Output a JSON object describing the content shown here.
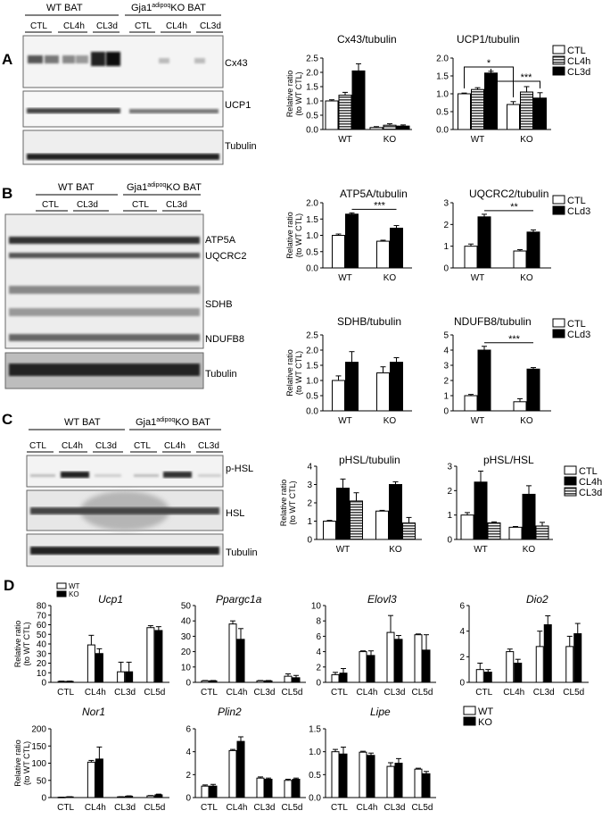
{
  "panels": {
    "A": {
      "letter": "A",
      "blot": {
        "groups": [
          "WT BAT",
          "Gja1",
          "adipoq",
          "KO BAT"
        ],
        "conditions": [
          "CTL",
          "CL4h",
          "CL3d",
          "CTL",
          "CL4h",
          "CL3d"
        ],
        "bands": [
          "Cx43",
          "UCP1",
          "Tubulin"
        ]
      }
    },
    "B": {
      "letter": "B",
      "blot": {
        "groups": [
          "WT BAT",
          "Gja1",
          "adipoq",
          "KO BAT"
        ],
        "conditions": [
          "CTL",
          "CL3d",
          "CTL",
          "CL3d"
        ],
        "bands": [
          "ATP5A",
          "UQCRC2",
          "SDHB",
          "NDUFB8",
          "Tubulin"
        ]
      }
    },
    "C": {
      "letter": "C",
      "blot": {
        "groups": [
          "WT BAT",
          "Gja1",
          "adipoq",
          "KO BAT"
        ],
        "conditions": [
          "CTL",
          "CL4h",
          "CL3d",
          "CTL",
          "CL4h",
          "CL3d"
        ],
        "bands": [
          "p-HSL",
          "HSL",
          "Tubulin"
        ]
      }
    },
    "D": {
      "letter": "D"
    }
  },
  "colors": {
    "white_fill": "#ffffff",
    "black_fill": "#000000",
    "striped": "#555555"
  },
  "chart_data": [
    {
      "id": "A1",
      "type": "bar",
      "title": "Cx43/tubulin",
      "ylabel": "Relative ratio\n(to WT CTL)",
      "categories": [
        "WT",
        "KO"
      ],
      "ylim": [
        0,
        2.5
      ],
      "ticks": [
        "0.0",
        "0.5",
        "1.0",
        "1.5",
        "2.0",
        "2.5"
      ],
      "series": [
        {
          "name": "CTL",
          "fill": "white",
          "values": [
            1.0,
            0.07
          ],
          "err": [
            0.04,
            0.03
          ]
        },
        {
          "name": "CL4h",
          "fill": "stripe",
          "values": [
            1.2,
            0.15
          ],
          "err": [
            0.1,
            0.05
          ]
        },
        {
          "name": "CL3d",
          "fill": "black",
          "values": [
            2.05,
            0.12
          ],
          "err": [
            0.25,
            0.04
          ]
        }
      ]
    },
    {
      "id": "A2",
      "type": "bar",
      "title": "UCP1/tubulin",
      "ylabel": "",
      "categories": [
        "WT",
        "KO"
      ],
      "ylim": [
        0,
        2.0
      ],
      "ticks": [
        "0.0",
        "0.5",
        "1.0",
        "1.5",
        "2.0"
      ],
      "series": [
        {
          "name": "CTL",
          "fill": "white",
          "values": [
            1.0,
            0.7
          ],
          "err": [
            0.02,
            0.08
          ]
        },
        {
          "name": "CL4h",
          "fill": "stripe",
          "values": [
            1.12,
            1.05
          ],
          "err": [
            0.05,
            0.15
          ]
        },
        {
          "name": "CL3d",
          "fill": "black",
          "values": [
            1.58,
            0.88
          ],
          "err": [
            0.05,
            0.15
          ]
        }
      ],
      "legend": [
        "CTL",
        "CL4h",
        "CL3d"
      ],
      "sig": [
        "*",
        "***"
      ]
    },
    {
      "id": "B1",
      "type": "bar",
      "title": "ATP5A/tubulin",
      "ylabel": "Relative ratio\n(to WT CTL)",
      "categories": [
        "WT",
        "KO"
      ],
      "ylim": [
        0,
        2.0
      ],
      "ticks": [
        "0.0",
        "0.5",
        "1.0",
        "1.5",
        "2.0"
      ],
      "series": [
        {
          "name": "CTL",
          "fill": "white",
          "values": [
            1.0,
            0.82
          ],
          "err": [
            0.04,
            0.03
          ]
        },
        {
          "name": "CLd3",
          "fill": "black",
          "values": [
            1.65,
            1.22
          ],
          "err": [
            0.04,
            0.08
          ]
        }
      ],
      "sig": [
        "***"
      ]
    },
    {
      "id": "B2",
      "type": "bar",
      "title": "UQCRC2/tubulin",
      "ylabel": "",
      "categories": [
        "WT",
        "KO"
      ],
      "ylim": [
        0,
        3
      ],
      "ticks": [
        "0",
        "1",
        "2",
        "3"
      ],
      "series": [
        {
          "name": "CTL",
          "fill": "white",
          "values": [
            1.0,
            0.78
          ],
          "err": [
            0.1,
            0.06
          ]
        },
        {
          "name": "CLd3",
          "fill": "black",
          "values": [
            2.35,
            1.65
          ],
          "err": [
            0.12,
            0.1
          ]
        }
      ],
      "legend": [
        "CTL",
        "CLd3"
      ],
      "sig": [
        "**"
      ]
    },
    {
      "id": "B3",
      "type": "bar",
      "title": "SDHB/tubulin",
      "ylabel": "Relative ratio\n(to WT CTL)",
      "categories": [
        "WT",
        "KO"
      ],
      "ylim": [
        0,
        2.5
      ],
      "ticks": [
        "0.0",
        "0.5",
        "1.0",
        "1.5",
        "2.0",
        "2.5"
      ],
      "series": [
        {
          "name": "CTL",
          "fill": "white",
          "values": [
            1.0,
            1.25
          ],
          "err": [
            0.15,
            0.2
          ]
        },
        {
          "name": "CLd3",
          "fill": "black",
          "values": [
            1.6,
            1.6
          ],
          "err": [
            0.35,
            0.15
          ]
        }
      ]
    },
    {
      "id": "B4",
      "type": "bar",
      "title": "NDUFB8/tubulin",
      "ylabel": "",
      "categories": [
        "WT",
        "KO"
      ],
      "ylim": [
        0,
        5
      ],
      "ticks": [
        "0",
        "1",
        "2",
        "3",
        "4",
        "5"
      ],
      "series": [
        {
          "name": "CTL",
          "fill": "white",
          "values": [
            1.0,
            0.6
          ],
          "err": [
            0.08,
            0.2
          ]
        },
        {
          "name": "CLd3",
          "fill": "black",
          "values": [
            4.0,
            2.75
          ],
          "err": [
            0.25,
            0.1
          ]
        }
      ],
      "legend": [
        "CTL",
        "CLd3"
      ],
      "sig": [
        "***"
      ]
    },
    {
      "id": "C1",
      "type": "bar",
      "title": "pHSL/tubulin",
      "ylabel": "Relative ratio\n(to WT CTL)",
      "categories": [
        "WT",
        "KO"
      ],
      "ylim": [
        0,
        4
      ],
      "ticks": [
        "0",
        "1",
        "2",
        "3",
        "4"
      ],
      "series": [
        {
          "name": "CTL",
          "fill": "white",
          "values": [
            1.0,
            1.55
          ],
          "err": [
            0.04,
            0.04
          ]
        },
        {
          "name": "CL4h",
          "fill": "black",
          "values": [
            2.8,
            3.0
          ],
          "err": [
            0.5,
            0.15
          ]
        },
        {
          "name": "CL3d",
          "fill": "stripe",
          "values": [
            2.1,
            0.9
          ],
          "err": [
            0.45,
            0.3
          ]
        }
      ]
    },
    {
      "id": "C2",
      "type": "bar",
      "title": "pHSL/HSL",
      "ylabel": "",
      "categories": [
        "WT",
        "KO"
      ],
      "ylim": [
        0,
        3
      ],
      "ticks": [
        "0",
        "1",
        "2",
        "3"
      ],
      "series": [
        {
          "name": "CTL",
          "fill": "white",
          "values": [
            1.0,
            0.5
          ],
          "err": [
            0.1,
            0.03
          ]
        },
        {
          "name": "CL4h",
          "fill": "black",
          "values": [
            2.35,
            1.85
          ],
          "err": [
            0.45,
            0.35
          ]
        },
        {
          "name": "CL3d",
          "fill": "stripe",
          "values": [
            0.68,
            0.55
          ],
          "err": [
            0.04,
            0.15
          ]
        }
      ],
      "legend": [
        "CTL",
        "CL4h",
        "CL3d"
      ]
    },
    {
      "id": "D1",
      "type": "bar",
      "title": "Ucp1",
      "italic": true,
      "ylabel": "Relative ratio\n(to WT CTL)",
      "categories": [
        "CTL",
        "CL4h",
        "CL3d",
        "CL5d"
      ],
      "ylim": [
        0,
        80
      ],
      "ticks": [
        "0",
        "10",
        "20",
        "30",
        "40",
        "50",
        "60",
        "70",
        "80"
      ],
      "series": [
        {
          "name": "WT",
          "fill": "white",
          "values": [
            1,
            39,
            11,
            57
          ],
          "err": [
            0.3,
            10,
            10,
            2
          ]
        },
        {
          "name": "KO",
          "fill": "black",
          "values": [
            1,
            30,
            11,
            54
          ],
          "err": [
            0.3,
            5,
            10,
            4
          ]
        }
      ],
      "legend": [
        "WT",
        "KO"
      ],
      "legend_small": true
    },
    {
      "id": "D2",
      "type": "bar",
      "title": "Ppargc1a",
      "italic": true,
      "ylabel": "",
      "categories": [
        "CTL",
        "CL4h",
        "CL3d",
        "CL5d"
      ],
      "ylim": [
        0,
        50
      ],
      "ticks": [
        "0",
        "10",
        "20",
        "30",
        "40",
        "50"
      ],
      "series": [
        {
          "name": "WT",
          "fill": "white",
          "values": [
            1,
            38,
            1,
            4
          ],
          "err": [
            0.2,
            2,
            0.2,
            1.5
          ]
        },
        {
          "name": "KO",
          "fill": "black",
          "values": [
            1,
            28,
            1,
            3
          ],
          "err": [
            0.2,
            7,
            0.2,
            1.5
          ]
        }
      ]
    },
    {
      "id": "D3",
      "type": "bar",
      "title": "Elovl3",
      "italic": true,
      "ylabel": "",
      "categories": [
        "CTL",
        "CL4h",
        "CL3d",
        "CL5d"
      ],
      "ylim": [
        0,
        10
      ],
      "ticks": [
        "0",
        "2",
        "4",
        "6",
        "8",
        "10"
      ],
      "series": [
        {
          "name": "WT",
          "fill": "white",
          "values": [
            1,
            4,
            6.5,
            6.2
          ],
          "err": [
            0.3,
            0.1,
            2.2,
            0.1
          ]
        },
        {
          "name": "KO",
          "fill": "black",
          "values": [
            1.2,
            3.5,
            5.6,
            4.2
          ],
          "err": [
            0.6,
            0.6,
            0.5,
            2
          ]
        }
      ]
    },
    {
      "id": "D4",
      "type": "bar",
      "title": "Dio2",
      "italic": true,
      "ylabel": "",
      "categories": [
        "CTL",
        "CL4h",
        "CL3d",
        "CL5d"
      ],
      "ylim": [
        0,
        6
      ],
      "ticks": [
        "0",
        "2",
        "4",
        "6"
      ],
      "series": [
        {
          "name": "WT",
          "fill": "white",
          "values": [
            1,
            2.4,
            2.8,
            2.8
          ],
          "err": [
            0.5,
            0.2,
            1.2,
            0.8
          ]
        },
        {
          "name": "KO",
          "fill": "black",
          "values": [
            0.8,
            1.5,
            4.5,
            3.8
          ],
          "err": [
            0.2,
            0.3,
            0.7,
            0.8
          ]
        }
      ]
    },
    {
      "id": "D5",
      "type": "bar",
      "title": "Nor1",
      "italic": true,
      "ylabel": "Relative ratio\n(to WT CTL)",
      "categories": [
        "CTL",
        "CL4h",
        "CL3d",
        "CL5d"
      ],
      "ylim": [
        0,
        200
      ],
      "ticks": [
        "0",
        "50",
        "100",
        "150",
        "200"
      ],
      "series": [
        {
          "name": "WT",
          "fill": "white",
          "values": [
            1,
            103,
            2,
            5
          ],
          "err": [
            0.3,
            5,
            0.5,
            1
          ]
        },
        {
          "name": "KO",
          "fill": "black",
          "values": [
            2,
            112,
            4,
            8
          ],
          "err": [
            0.5,
            35,
            1,
            2
          ]
        }
      ]
    },
    {
      "id": "D6",
      "type": "bar",
      "title": "Plin2",
      "italic": true,
      "ylabel": "",
      "categories": [
        "CTL",
        "CL4h",
        "CL3d",
        "CL5d"
      ],
      "ylim": [
        0,
        6
      ],
      "ticks": [
        "0",
        "2",
        "4",
        "6"
      ],
      "series": [
        {
          "name": "WT",
          "fill": "white",
          "values": [
            1,
            4.1,
            1.7,
            1.5
          ],
          "err": [
            0.1,
            0.1,
            0.1,
            0.1
          ]
        },
        {
          "name": "KO",
          "fill": "black",
          "values": [
            1,
            4.9,
            1.6,
            1.6
          ],
          "err": [
            0.15,
            0.4,
            0.1,
            0.1
          ]
        }
      ]
    },
    {
      "id": "D7",
      "type": "bar",
      "title": "Lipe",
      "italic": true,
      "ylabel": "",
      "categories": [
        "CTL",
        "CL4h",
        "CL3d",
        "CL5d"
      ],
      "ylim": [
        0,
        1.5
      ],
      "ticks": [
        "0.0",
        "0.5",
        "1.0",
        "1.5"
      ],
      "series": [
        {
          "name": "WT",
          "fill": "white",
          "values": [
            1,
            0.99,
            0.68,
            0.62
          ],
          "err": [
            0.05,
            0.02,
            0.08,
            0.02
          ]
        },
        {
          "name": "KO",
          "fill": "black",
          "values": [
            0.95,
            0.92,
            0.75,
            0.52
          ],
          "err": [
            0.15,
            0.05,
            0.1,
            0.05
          ]
        }
      ],
      "legend": [
        "WT",
        "KO"
      ]
    }
  ]
}
